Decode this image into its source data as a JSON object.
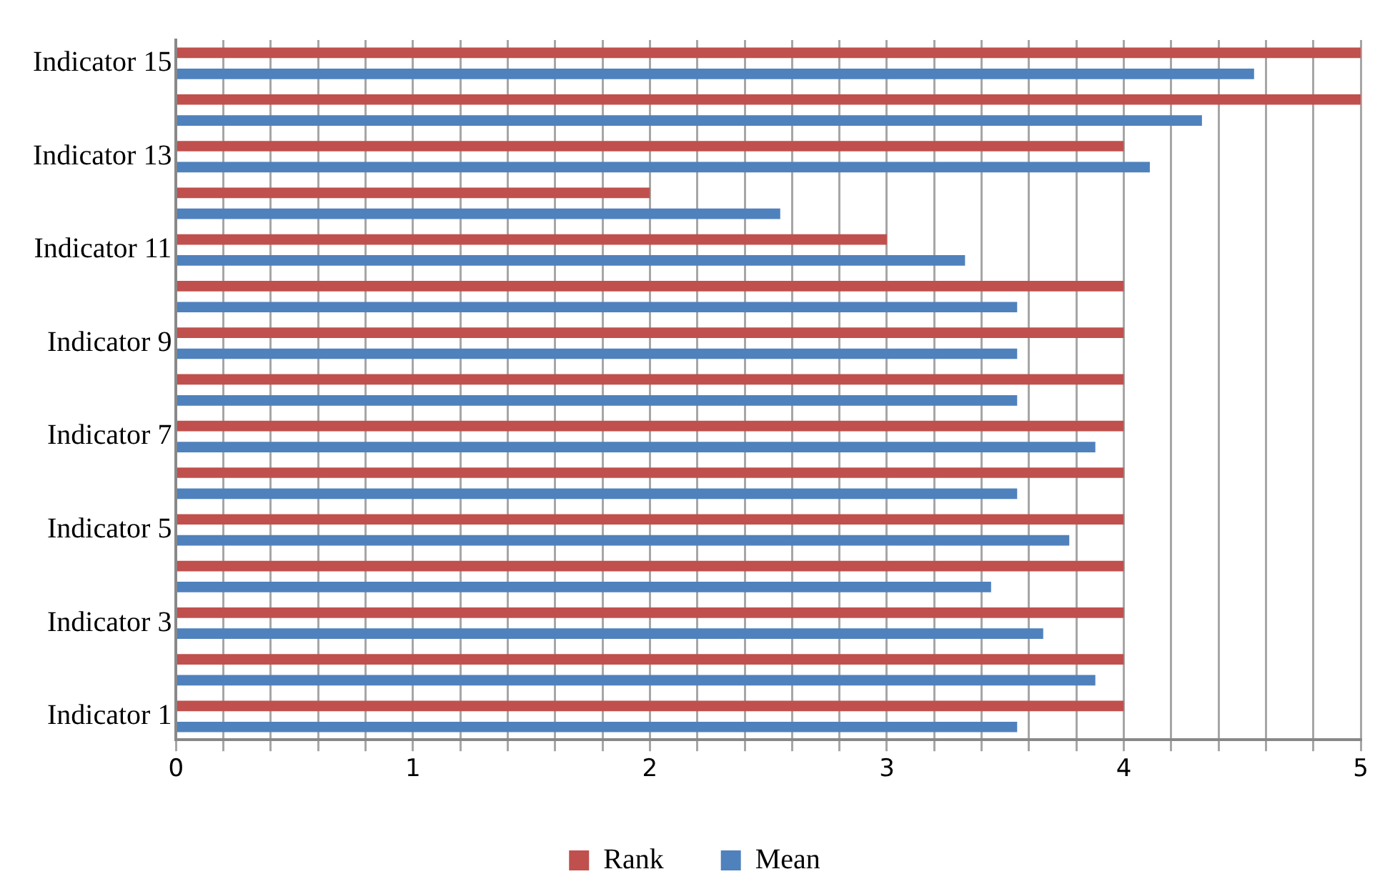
{
  "chart_data": {
    "type": "bar",
    "orientation": "horizontal",
    "categories": [
      "Indicator 15",
      null,
      "Indicator 13",
      null,
      "Indicator 11",
      null,
      "Indicator 9",
      null,
      "Indicator 7",
      null,
      "Indicator 5",
      null,
      "Indicator 3",
      null,
      "Indicator 1"
    ],
    "series": [
      {
        "name": "Rank",
        "color": "#c0504d",
        "values": [
          5,
          5,
          4,
          2,
          3,
          4,
          4,
          4,
          4,
          4,
          4,
          4,
          4,
          4,
          4
        ]
      },
      {
        "name": "Mean",
        "color": "#4f81bd",
        "values": [
          4.55,
          4.33,
          4.11,
          2.55,
          3.33,
          3.55,
          3.55,
          3.55,
          3.88,
          3.55,
          3.77,
          3.44,
          3.66,
          3.88,
          3.55
        ]
      }
    ],
    "xlim": [
      0,
      5
    ],
    "xticks": [
      0,
      {
        "value": 0.2,
        "label": null
      },
      {
        "value": 0.4,
        "label": null
      },
      {
        "value": 0.6,
        "label": null
      },
      {
        "value": 0.8,
        "label": null
      },
      1,
      {
        "value": 1.2,
        "label": null
      },
      {
        "value": 1.4,
        "label": null
      },
      {
        "value": 1.6,
        "label": null
      },
      {
        "value": 1.8,
        "label": null
      },
      2,
      {
        "value": 2.2,
        "label": null
      },
      {
        "value": 2.4,
        "label": null
      },
      {
        "value": 2.6,
        "label": null
      },
      {
        "value": 2.8,
        "label": null
      },
      3,
      {
        "value": 3.2,
        "label": null
      },
      {
        "value": 3.4,
        "label": null
      },
      {
        "value": 3.6,
        "label": null
      },
      {
        "value": 3.8,
        "label": null
      },
      4,
      {
        "value": 4.2,
        "label": null
      },
      {
        "value": 4.4,
        "label": null
      },
      {
        "value": 4.6,
        "label": null
      },
      {
        "value": 4.8,
        "label": null
      },
      5
    ],
    "grid": "x",
    "legend": "bottom"
  }
}
